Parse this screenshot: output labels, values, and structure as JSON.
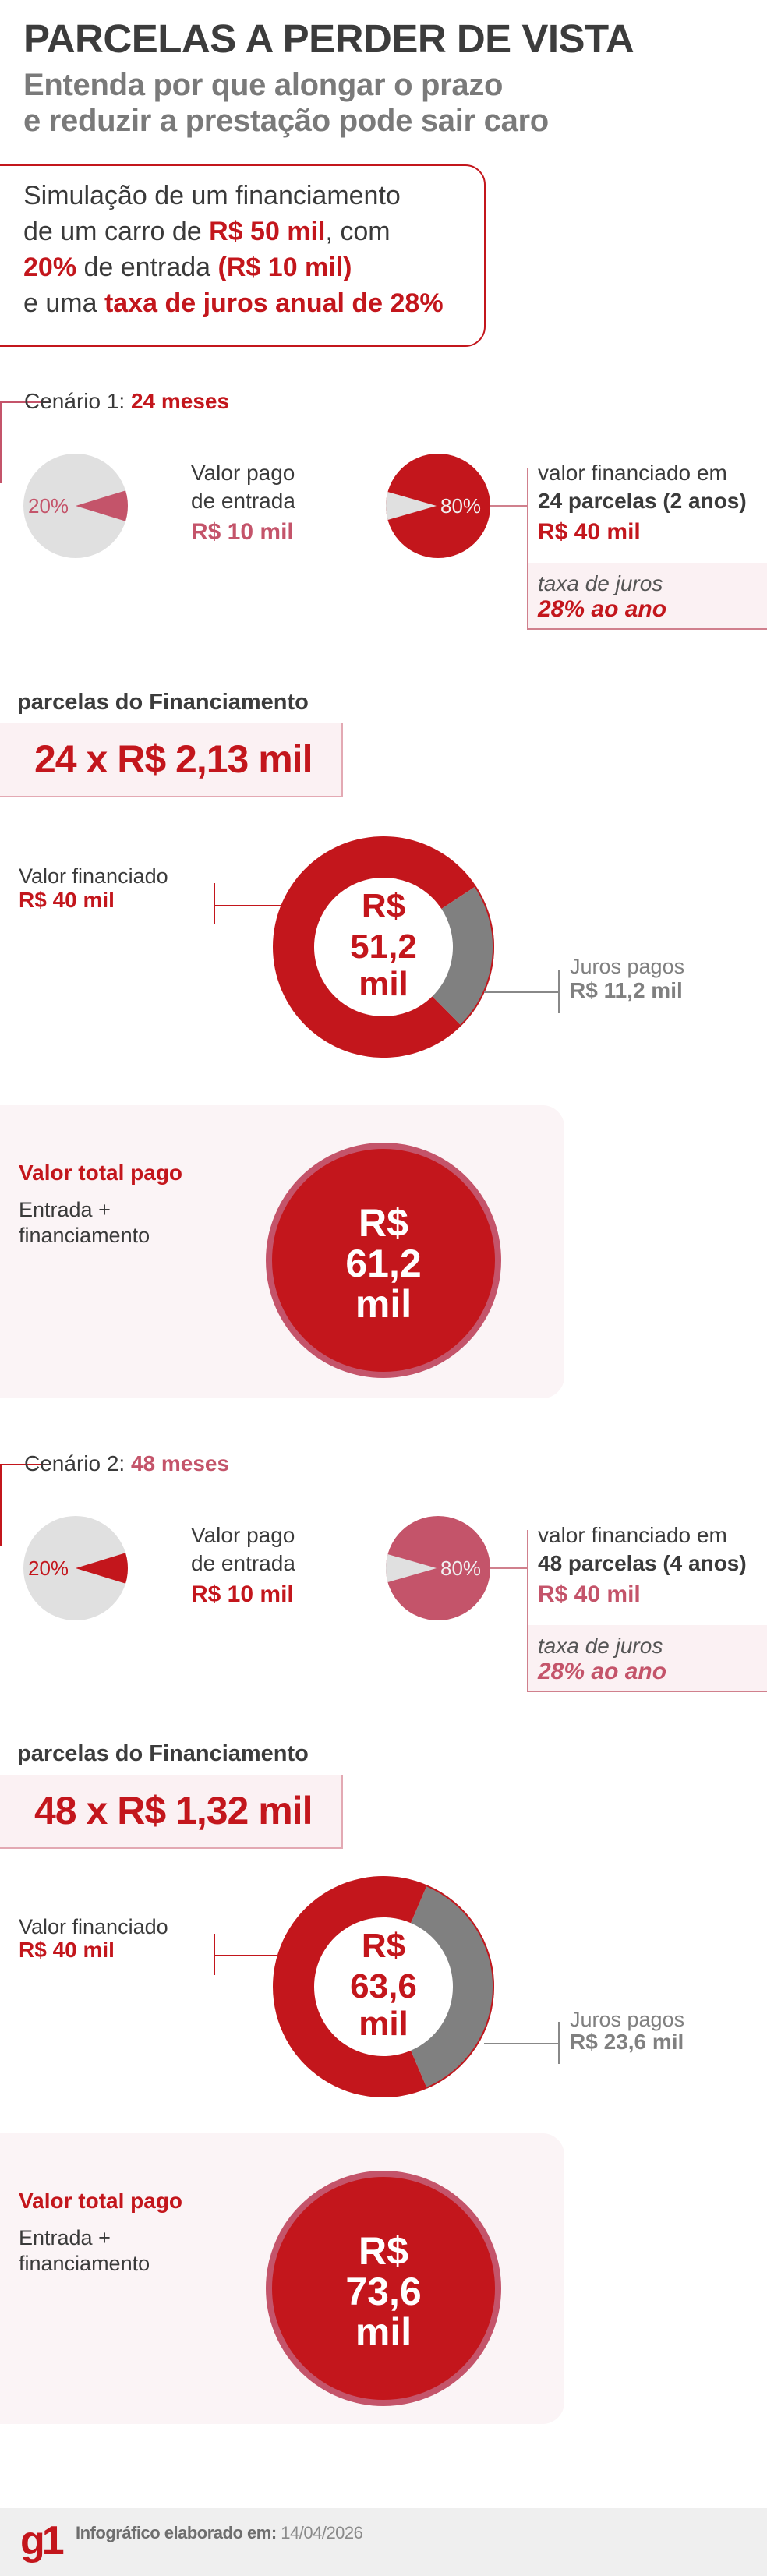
{
  "header": {
    "title": "PARCELAS A PERDER DE VISTA",
    "subtitle_lines": [
      "Entenda por que alongar o prazo",
      "e reduzir a prestação pode sair caro"
    ]
  },
  "intro": {
    "line1": "Simulação de um financiamento",
    "line2_a": "de um carro de ",
    "line2_b": "R$ 50 mil",
    "line2_c": ", com",
    "line3_a": "20%",
    "line3_b": " de entrada ",
    "line3_c": "(R$ 10 mil)",
    "line4_a": "e uma ",
    "line4_b": "taxa de juros anual de 28%"
  },
  "colors": {
    "red": "#c3161c",
    "pink": "#c4546a",
    "gray": "#808080",
    "light_gray": "#e0e0e0",
    "panel": "#fbf1f3"
  },
  "scenarios": [
    {
      "label": "Cenário 1: ",
      "term": "24 meses",
      "down_payment": {
        "percent": "20%",
        "value_fraction": 0.2,
        "line1": "Valor pago",
        "line2": "de entrada",
        "amount": "R$ 10 mil"
      },
      "financed": {
        "percent": "80%",
        "value_fraction": 0.8,
        "line1": "valor financiado em",
        "line2": "24 parcelas (2 anos)",
        "amount": "R$ 40 mil",
        "rate_label": "taxa de juros",
        "rate": "28% ao ano"
      },
      "installments": {
        "heading": "parcelas do Financiamento",
        "value": "24 x R$ 2,13 mil"
      },
      "donut": {
        "financed_label": "Valor financiado",
        "financed_amount": "R$ 40 mil",
        "financed_value": 40,
        "interest_label": "Juros pagos",
        "interest_amount": "R$ 11,2 mil",
        "interest_value": 11.2,
        "center": [
          "R$",
          "51,2",
          "mil"
        ]
      },
      "total": {
        "title": "Valor total pago",
        "line1": "Entrada +",
        "line2": "financiamento",
        "value": [
          "R$",
          "61,2",
          "mil"
        ]
      }
    },
    {
      "label": "Cenário 2: ",
      "term": "48 meses",
      "down_payment": {
        "percent": "20%",
        "value_fraction": 0.2,
        "line1": "Valor pago",
        "line2": "de entrada",
        "amount": "R$ 10 mil"
      },
      "financed": {
        "percent": "80%",
        "value_fraction": 0.8,
        "line1": "valor financiado em",
        "line2": "48 parcelas (4 anos)",
        "amount": "R$ 40 mil",
        "rate_label": "taxa de juros",
        "rate": "28% ao ano"
      },
      "installments": {
        "heading": "parcelas do Financiamento",
        "value": "48 x R$ 1,32 mil"
      },
      "donut": {
        "financed_label": "Valor financiado",
        "financed_amount": "R$ 40 mil",
        "financed_value": 40,
        "interest_label": "Juros pagos",
        "interest_amount": "R$ 23,6 mil",
        "interest_value": 23.6,
        "center": [
          "R$",
          "63,6",
          "mil"
        ]
      },
      "total": {
        "title": "Valor total pago",
        "line1": "Entrada +",
        "line2": "financiamento",
        "value": [
          "R$",
          "73,6",
          "mil"
        ]
      }
    }
  ],
  "footer": {
    "logo": "g1",
    "label": "Infográfico elaborado em:",
    "date": "14/04/2026"
  }
}
